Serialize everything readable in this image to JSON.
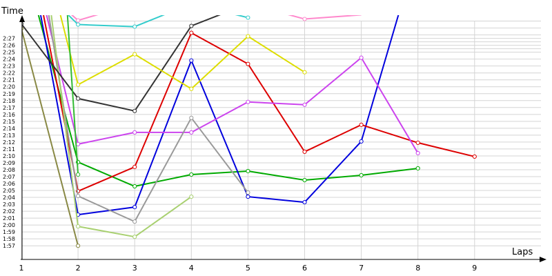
{
  "chart_data": {
    "type": "line",
    "xlabel": "Laps",
    "ylabel": "Time",
    "x": [
      1,
      2,
      3,
      4,
      5,
      6,
      7,
      8,
      9
    ],
    "x_tick_labels": [
      "1",
      "2",
      "3",
      "4",
      "5",
      "6",
      "7",
      "8",
      "9"
    ],
    "y_tick_labels": [
      "1:57",
      "1:58",
      "1:59",
      "2:00",
      "2:01",
      "2:02",
      "2:03",
      "2:04",
      "2:05",
      "2:06",
      "2:07",
      "2:08",
      "2:09",
      "2:10",
      "2:11",
      "2:12",
      "2:13",
      "2:14",
      "2:15",
      "2:16",
      "2:17",
      "2:18",
      "2:19",
      "2:20",
      "2:21",
      "2:22",
      "2:23",
      "2:24",
      "2:25",
      "2:26",
      "2:27"
    ],
    "ylim_seconds": [
      115.5,
      150.2
    ],
    "grid": true,
    "series": [
      {
        "color": "#00aa00",
        "values": [
          null,
          129.1,
          125.6,
          127.3,
          127.8,
          126.5,
          127.2,
          128.2,
          null
        ],
        "note_off_top_at_lap1": true
      },
      {
        "color": "#0000dd",
        "values": [
          null,
          121.5,
          122.6,
          143.8,
          124.1,
          123.3,
          132.1,
          160,
          null
        ],
        "note_off_top_at_lap1": true
      },
      {
        "color": "#dd0000",
        "values": [
          null,
          124.9,
          128.4,
          147.8,
          143.3,
          130.6,
          134.5,
          131.9,
          129.9
        ],
        "note_off_top_at_lap1": true
      },
      {
        "color": "#cc44ee",
        "values": [
          null,
          131.7,
          133.4,
          133.4,
          137.8,
          137.4,
          144.2,
          130.4,
          null
        ],
        "note_off_top_at_lap1": true
      },
      {
        "color": "#999999",
        "values": [
          null,
          124.2,
          120.5,
          135.5,
          124.7,
          null,
          null,
          null,
          null
        ],
        "note_off_top_at_lap1": true
      },
      {
        "color": "#a8d070",
        "values": [
          null,
          119.8,
          118.3,
          124.1,
          null,
          null,
          null,
          null,
          null
        ],
        "note_off_top_at_lap1": true
      },
      {
        "color": "#888844",
        "values": [
          148.4,
          117.0,
          null,
          null,
          null,
          null,
          null,
          null,
          null
        ]
      },
      {
        "color": "#333333",
        "values": [
          149.1,
          138.3,
          136.5,
          148.8,
          152,
          null,
          null,
          null,
          null
        ]
      },
      {
        "color": "#dddd00",
        "values": [
          null,
          140.3,
          144.7,
          139.7,
          147.3,
          142.1,
          null,
          null,
          null
        ],
        "note_off_top_at_lap1": true
      },
      {
        "color": "#33cccc",
        "values": [
          null,
          149.0,
          148.7,
          152,
          150.0,
          null,
          null,
          null,
          null
        ],
        "note_off_top_at_lap1": true
      },
      {
        "color": "#ff88cc",
        "values": [
          null,
          149.6,
          152,
          null,
          152,
          149.8,
          150.4,
          null,
          null
        ],
        "note_off_top_at_lap1": true
      },
      {
        "color": "#33bb33",
        "values": [
          null,
          127.3,
          null,
          null,
          null,
          null,
          null,
          null,
          null
        ],
        "note_off_top_at_lap1": true
      }
    ]
  }
}
